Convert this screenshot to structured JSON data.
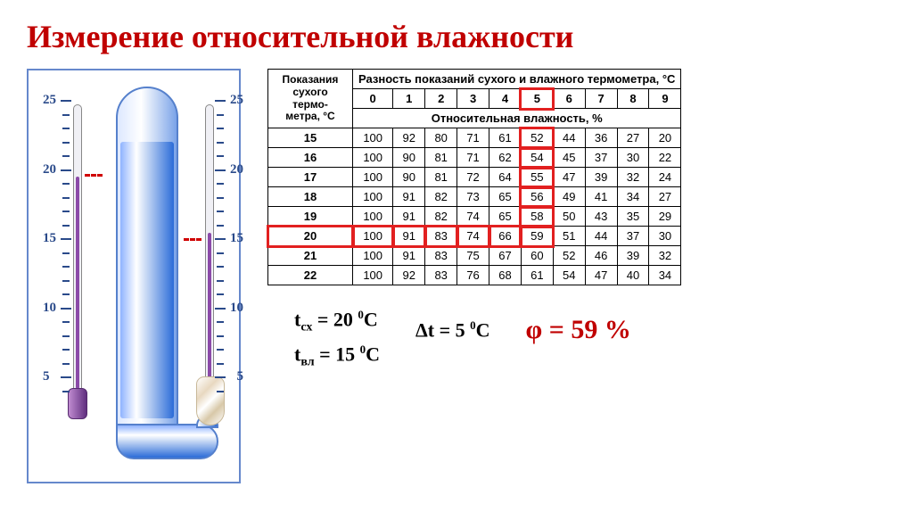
{
  "title": "Измерение относительной влажности",
  "psychrometer": {
    "scale_values": [
      25,
      20,
      15,
      10,
      5
    ],
    "dry_reading": 20,
    "wet_reading": 15,
    "fluid_color": "#8b4aa8",
    "frame_color": "#6688cc",
    "liquid_color": "#2b6cd8"
  },
  "table": {
    "row_header_line1": "Показания",
    "row_header_line2": "сухого",
    "row_header_line3": "термо-",
    "row_header_line4": "метра, °C",
    "top_header": "Разность показаний сухого и влажного термометра, °C",
    "sub_header": "Относительная влажность, %",
    "diff_columns": [
      0,
      1,
      2,
      3,
      4,
      5,
      6,
      7,
      8,
      9
    ],
    "rows": [
      {
        "temp": 15,
        "vals": [
          100,
          92,
          80,
          71,
          61,
          52,
          44,
          36,
          27,
          20
        ]
      },
      {
        "temp": 16,
        "vals": [
          100,
          90,
          81,
          71,
          62,
          54,
          45,
          37,
          30,
          22
        ]
      },
      {
        "temp": 17,
        "vals": [
          100,
          90,
          81,
          72,
          64,
          55,
          47,
          39,
          32,
          24
        ]
      },
      {
        "temp": 18,
        "vals": [
          100,
          91,
          82,
          73,
          65,
          56,
          49,
          41,
          34,
          27
        ]
      },
      {
        "temp": 19,
        "vals": [
          100,
          91,
          82,
          74,
          65,
          58,
          50,
          43,
          35,
          29
        ]
      },
      {
        "temp": 20,
        "vals": [
          100,
          91,
          83,
          74,
          66,
          59,
          51,
          44,
          37,
          30
        ]
      },
      {
        "temp": 21,
        "vals": [
          100,
          91,
          83,
          75,
          67,
          60,
          52,
          46,
          39,
          32
        ]
      },
      {
        "temp": 22,
        "vals": [
          100,
          92,
          83,
          76,
          68,
          61,
          54,
          47,
          40,
          34
        ]
      }
    ],
    "highlight_row_temp": 20,
    "highlight_col_diff": 5,
    "highlight_value": 59,
    "border_color": "#000000",
    "highlight_color": "#e22020",
    "font_size": 13
  },
  "formulas": {
    "t_dry_label": "t",
    "t_dry_sub": "сх",
    "t_dry_value": "= 20 ",
    "t_dry_unit_sup": "0",
    "t_dry_unit": "C",
    "t_wet_label": "t",
    "t_wet_sub": "вл",
    "t_wet_value": "= 15 ",
    "t_wet_unit_sup": "0",
    "t_wet_unit": "C",
    "delta_label": "Δt = 5 ",
    "delta_unit_sup": "0",
    "delta_unit": "C",
    "phi": "φ = 59 %",
    "phi_color": "#c00000"
  }
}
